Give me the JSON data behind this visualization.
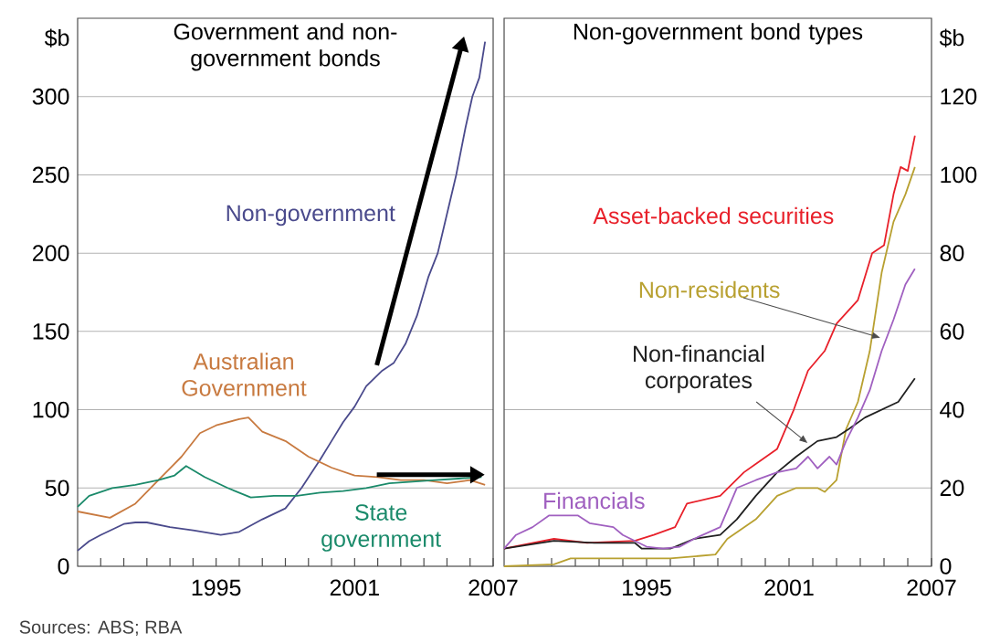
{
  "chart_data": [
    {
      "type": "line",
      "title": "Government and non-government bonds",
      "ylabel": "$b",
      "xlim": [
        1989,
        2007
      ],
      "ylim": [
        0,
        350
      ],
      "xticks": [
        {
          "value": 1990,
          "label": null
        },
        {
          "value": 1991,
          "label": null
        },
        {
          "value": 1992,
          "label": null
        },
        {
          "value": 1993,
          "label": null
        },
        {
          "value": 1994,
          "label": null
        },
        1995,
        {
          "value": 1996,
          "label": null
        },
        {
          "value": 1997,
          "label": null
        },
        {
          "value": 1998,
          "label": null
        },
        {
          "value": 1999,
          "label": null
        },
        {
          "value": 2000,
          "label": null
        },
        2001,
        {
          "value": 2002,
          "label": null
        },
        {
          "value": 2003,
          "label": null
        },
        {
          "value": 2004,
          "label": null
        },
        {
          "value": 2005,
          "label": null
        },
        {
          "value": 2006,
          "label": null
        },
        2007
      ],
      "yticks": [
        0,
        50,
        100,
        150,
        200,
        250,
        300
      ],
      "grid": "y",
      "annotations": [
        "Sources: ABS; RBA"
      ],
      "series": [
        {
          "name": "Non-government",
          "color": "#4a4a8c",
          "x": [
            1989,
            1989.5,
            1990,
            1991,
            1991.5,
            1992,
            1993,
            1994,
            1995.2,
            1996,
            1997,
            1998,
            1998.7,
            1999.5,
            2000,
            2000.5,
            2001,
            2001.5,
            2002.2,
            2002.7,
            2003.2,
            2003.7,
            2004.2,
            2004.6,
            2005,
            2005.4,
            2005.8,
            2006.1,
            2006.4,
            2006.65
          ],
          "values": [
            10,
            16,
            20,
            27,
            28,
            28,
            25,
            23,
            20,
            22,
            30,
            37,
            50,
            68,
            80,
            92,
            102,
            115,
            125,
            130,
            142,
            160,
            185,
            200,
            225,
            250,
            280,
            300,
            312,
            335
          ]
        },
        {
          "name": "Australian Government",
          "color": "#c87a40",
          "x": [
            1989,
            1990.4,
            1991.5,
            1992.5,
            1993.5,
            1994.3,
            1995,
            1996,
            1996.4,
            1997,
            1998,
            1999,
            2000,
            2001,
            2002,
            2003,
            2004,
            2005,
            2006,
            2006.65
          ],
          "values": [
            35,
            31,
            40,
            55,
            70,
            85,
            90,
            94,
            95,
            86,
            80,
            70,
            63,
            58,
            57,
            55,
            55,
            53,
            55,
            52
          ]
        },
        {
          "name": "State government",
          "color": "#1a8a6a",
          "x": [
            1989,
            1989.5,
            1990.5,
            1991.5,
            1992.5,
            1993.2,
            1993.7,
            1994.5,
            1995.5,
            1996.5,
            1997.5,
            1998.5,
            1999.5,
            2000.5,
            2001.5,
            2002.5,
            2003.5,
            2004.5,
            2005.5,
            2006.5
          ],
          "values": [
            38,
            45,
            50,
            52,
            55,
            58,
            64,
            57,
            50,
            44,
            45,
            45,
            47,
            48,
            50,
            53,
            54,
            55,
            56,
            57
          ]
        }
      ]
    },
    {
      "type": "line",
      "title": "Non-government bond types",
      "y2label": "$b",
      "xlim": [
        1989,
        2007
      ],
      "y2lim": [
        0,
        140
      ],
      "xticks": [
        {
          "value": 1990,
          "label": null
        },
        {
          "value": 1991,
          "label": null
        },
        {
          "value": 1992,
          "label": null
        },
        {
          "value": 1993,
          "label": null
        },
        {
          "value": 1994,
          "label": null
        },
        1995,
        {
          "value": 1996,
          "label": null
        },
        {
          "value": 1997,
          "label": null
        },
        {
          "value": 1998,
          "label": null
        },
        {
          "value": 1999,
          "label": null
        },
        {
          "value": 2000,
          "label": null
        },
        2001,
        {
          "value": 2002,
          "label": null
        },
        {
          "value": 2003,
          "label": null
        },
        {
          "value": 2004,
          "label": null
        },
        {
          "value": 2005,
          "label": null
        },
        {
          "value": 2006,
          "label": null
        },
        2007
      ],
      "y2ticks": [
        0,
        20,
        40,
        60,
        80,
        100,
        120
      ],
      "grid": "y",
      "series": [
        {
          "name": "Asset-backed securities",
          "axis": "y2",
          "color": "#e8202a",
          "x": [
            1989,
            1991.1,
            1992.5,
            1994.5,
            1995.3,
            1996.2,
            1996.7,
            1998.1,
            1999.1,
            2000.5,
            2001.2,
            2001.8,
            2002.5,
            2003,
            2003.9,
            2004.5,
            2005,
            2005.4,
            2005.7,
            2006,
            2006.3
          ],
          "values": [
            4.5,
            7,
            6,
            6.5,
            8,
            10,
            16,
            18,
            24,
            30,
            40,
            50,
            55,
            62,
            68,
            80,
            82,
            95,
            102,
            101,
            110
          ]
        },
        {
          "name": "Non-residents",
          "axis": "y2",
          "color": "#b8a030",
          "x": [
            1989,
            1991.1,
            1991.8,
            1996,
            1997.9,
            1998.4,
            1999.6,
            2000.5,
            2001.3,
            2002.2,
            2002.5,
            2003,
            2003.4,
            2003.9,
            2004.4,
            2004.9,
            2005.4,
            2005.9,
            2006.3
          ],
          "values": [
            0,
            0.5,
            2,
            2,
            3,
            7,
            12,
            18,
            20,
            20,
            19,
            22,
            35,
            42,
            55,
            75,
            88,
            95,
            102
          ]
        },
        {
          "name": "Non-financial corporates",
          "axis": "y2",
          "color": "#202020",
          "x": [
            1989,
            1991.1,
            1992.8,
            1994.5,
            1994.8,
            1996,
            1997,
            1998.1,
            1998.8,
            1999.6,
            2000.5,
            2001.3,
            2002.2,
            2003,
            2003.5,
            2004.2,
            2004.9,
            2005.6,
            2006.3
          ],
          "values": [
            4.5,
            6.5,
            6,
            6,
            4.5,
            4.5,
            7,
            8,
            12,
            18,
            24,
            28,
            32,
            33,
            35,
            38,
            40,
            42,
            48
          ]
        },
        {
          "name": "Financials",
          "axis": "y2",
          "color": "#a060c0",
          "x": [
            1989,
            1989.5,
            1990.2,
            1990.9,
            1992.1,
            1992.6,
            1993.6,
            1994,
            1995,
            1995.7,
            1996.4,
            1997,
            1998.1,
            1998.8,
            1999.6,
            2000.5,
            2001.3,
            2001.8,
            2002.2,
            2002.7,
            2003,
            2003.4,
            2003.9,
            2004.4,
            2004.9,
            2005.4,
            2005.9,
            2006.3
          ],
          "values": [
            4.5,
            8,
            10,
            13,
            13,
            11,
            10,
            8,
            5,
            4.5,
            5,
            7,
            10,
            20,
            22,
            24,
            25,
            28,
            25,
            28,
            26,
            32,
            38,
            45,
            55,
            63,
            72,
            76
          ]
        }
      ]
    }
  ]
}
